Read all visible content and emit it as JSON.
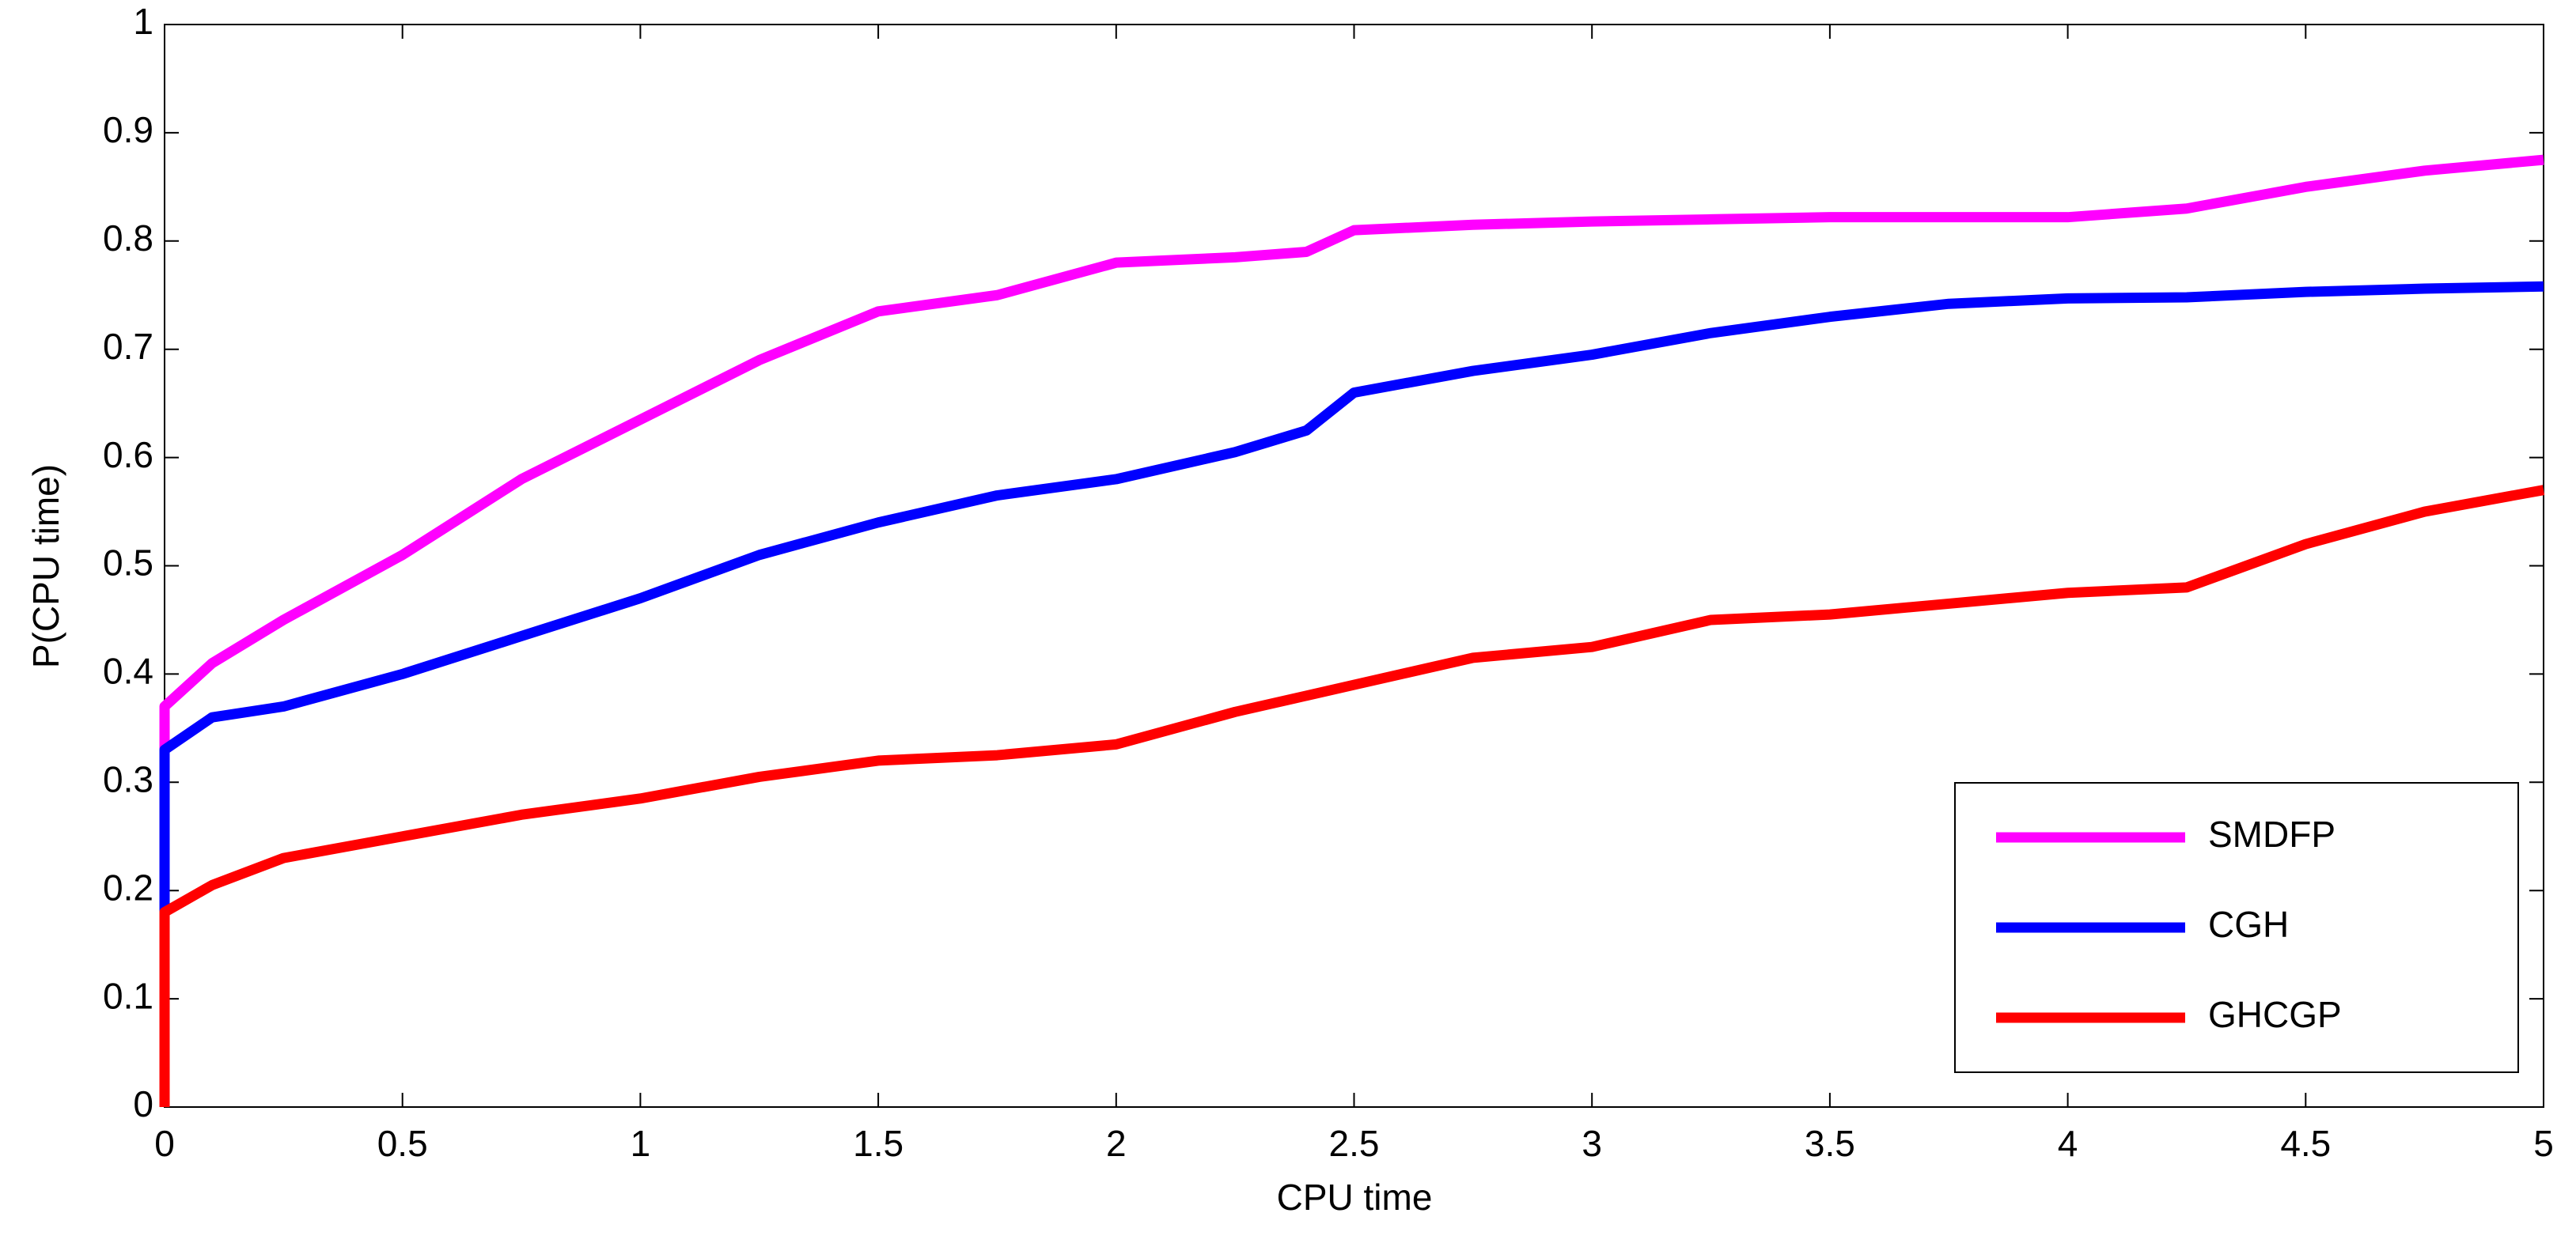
{
  "chart_data": {
    "type": "line",
    "xlabel": "CPU time",
    "ylabel": "P(CPU time)",
    "x": [
      0,
      0,
      0.1,
      0.25,
      0.5,
      0.75,
      1,
      1.25,
      1.5,
      1.75,
      2,
      2.25,
      2.4,
      2.5,
      2.75,
      3,
      3.25,
      3.5,
      3.75,
      4,
      4.25,
      4.5,
      4.75,
      5
    ],
    "series": [
      {
        "name": "SMDFP",
        "color": "#ff00ff",
        "values": [
          0,
          0.37,
          0.41,
          0.45,
          0.51,
          0.58,
          0.635,
          0.69,
          0.735,
          0.75,
          0.78,
          0.785,
          0.79,
          0.81,
          0.815,
          0.818,
          0.82,
          0.822,
          0.822,
          0.822,
          0.83,
          0.85,
          0.865,
          0.875
        ]
      },
      {
        "name": "CGH",
        "color": "#0000ff",
        "values": [
          0,
          0.33,
          0.36,
          0.37,
          0.4,
          0.435,
          0.47,
          0.51,
          0.54,
          0.565,
          0.58,
          0.605,
          0.625,
          0.66,
          0.68,
          0.695,
          0.715,
          0.73,
          0.742,
          0.747,
          0.748,
          0.753,
          0.756,
          0.758
        ]
      },
      {
        "name": "GHCGP",
        "color": "#ff0000",
        "values": [
          0,
          0.18,
          0.205,
          0.23,
          0.25,
          0.27,
          0.285,
          0.305,
          0.32,
          0.325,
          0.335,
          0.365,
          0.38,
          0.39,
          0.415,
          0.425,
          0.45,
          0.455,
          0.465,
          0.475,
          0.48,
          0.52,
          0.55,
          0.57
        ]
      }
    ],
    "xlim": [
      0,
      5
    ],
    "xticks": [
      0,
      0.5,
      1,
      1.5,
      2,
      2.5,
      3,
      3.5,
      4,
      4.5,
      5
    ],
    "ylim": [
      0,
      1
    ],
    "yticks": [
      0,
      0.1,
      0.2,
      0.3,
      0.4,
      0.5,
      0.6,
      0.7,
      0.8,
      0.9,
      1
    ],
    "legend": "lower right"
  }
}
